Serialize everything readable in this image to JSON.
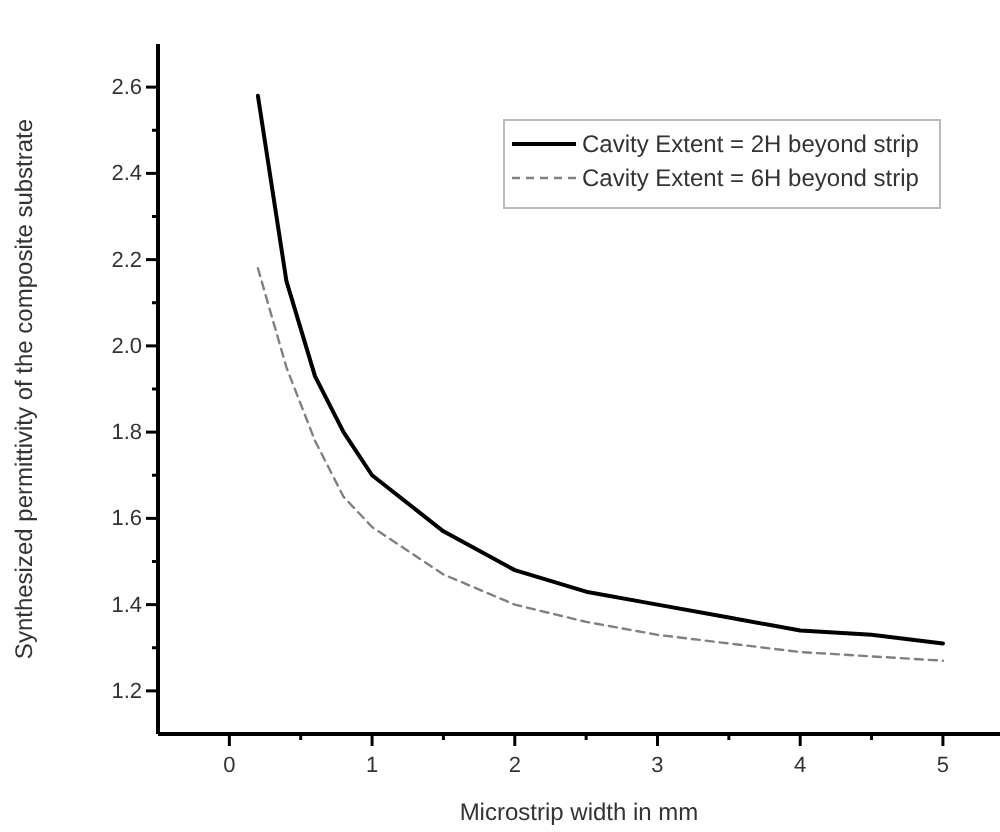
{
  "chart_data": {
    "type": "line",
    "xlabel": "Microstrip width in mm",
    "ylabel": "Synthesized permittivity of the composite substrate",
    "x": [
      0.2,
      0.4,
      0.6,
      0.8,
      1.0,
      1.5,
      2.0,
      2.5,
      3.0,
      3.5,
      4.0,
      4.5,
      5.0
    ],
    "series": [
      {
        "name": "Cavity Extent = 2H beyond strip",
        "color": "#000000",
        "line_style": "solid",
        "values": [
          2.58,
          2.15,
          1.93,
          1.8,
          1.7,
          1.57,
          1.48,
          1.43,
          1.4,
          1.37,
          1.34,
          1.33,
          1.31
        ]
      },
      {
        "name": "Cavity Extent = 6H beyond strip",
        "color": "#808080",
        "line_style": "dashed",
        "values": [
          2.18,
          1.95,
          1.78,
          1.65,
          1.58,
          1.47,
          1.4,
          1.36,
          1.33,
          1.31,
          1.29,
          1.28,
          1.27
        ]
      }
    ],
    "xlim": [
      -0.5,
      5.4
    ],
    "ylim": [
      1.1,
      2.7
    ],
    "xticks": [
      0,
      {
        "value": 0.5,
        "label": null
      },
      1,
      {
        "value": 1.5,
        "label": null
      },
      2,
      {
        "value": 2.5,
        "label": null
      },
      3,
      {
        "value": 3.5,
        "label": null
      },
      4,
      {
        "value": 4.5,
        "label": null
      },
      5
    ],
    "yticks": [
      {
        "value": 1.2,
        "label": "1.2"
      },
      {
        "value": 1.3,
        "label": null
      },
      {
        "value": 1.4,
        "label": "1.4"
      },
      {
        "value": 1.5,
        "label": null
      },
      {
        "value": 1.6,
        "label": "1.6"
      },
      {
        "value": 1.7,
        "label": null
      },
      {
        "value": 1.8,
        "label": "1.8"
      },
      {
        "value": 1.9,
        "label": null
      },
      {
        "value": 2.0,
        "label": "2.0"
      },
      {
        "value": 2.1,
        "label": null
      },
      {
        "value": 2.2,
        "label": "2.2"
      },
      {
        "value": 2.3,
        "label": null
      },
      {
        "value": 2.4,
        "label": "2.4"
      },
      {
        "value": 2.5,
        "label": null
      },
      {
        "value": 2.6,
        "label": "2.6"
      }
    ],
    "grid": false,
    "legend": "top right",
    "marker": "none"
  }
}
